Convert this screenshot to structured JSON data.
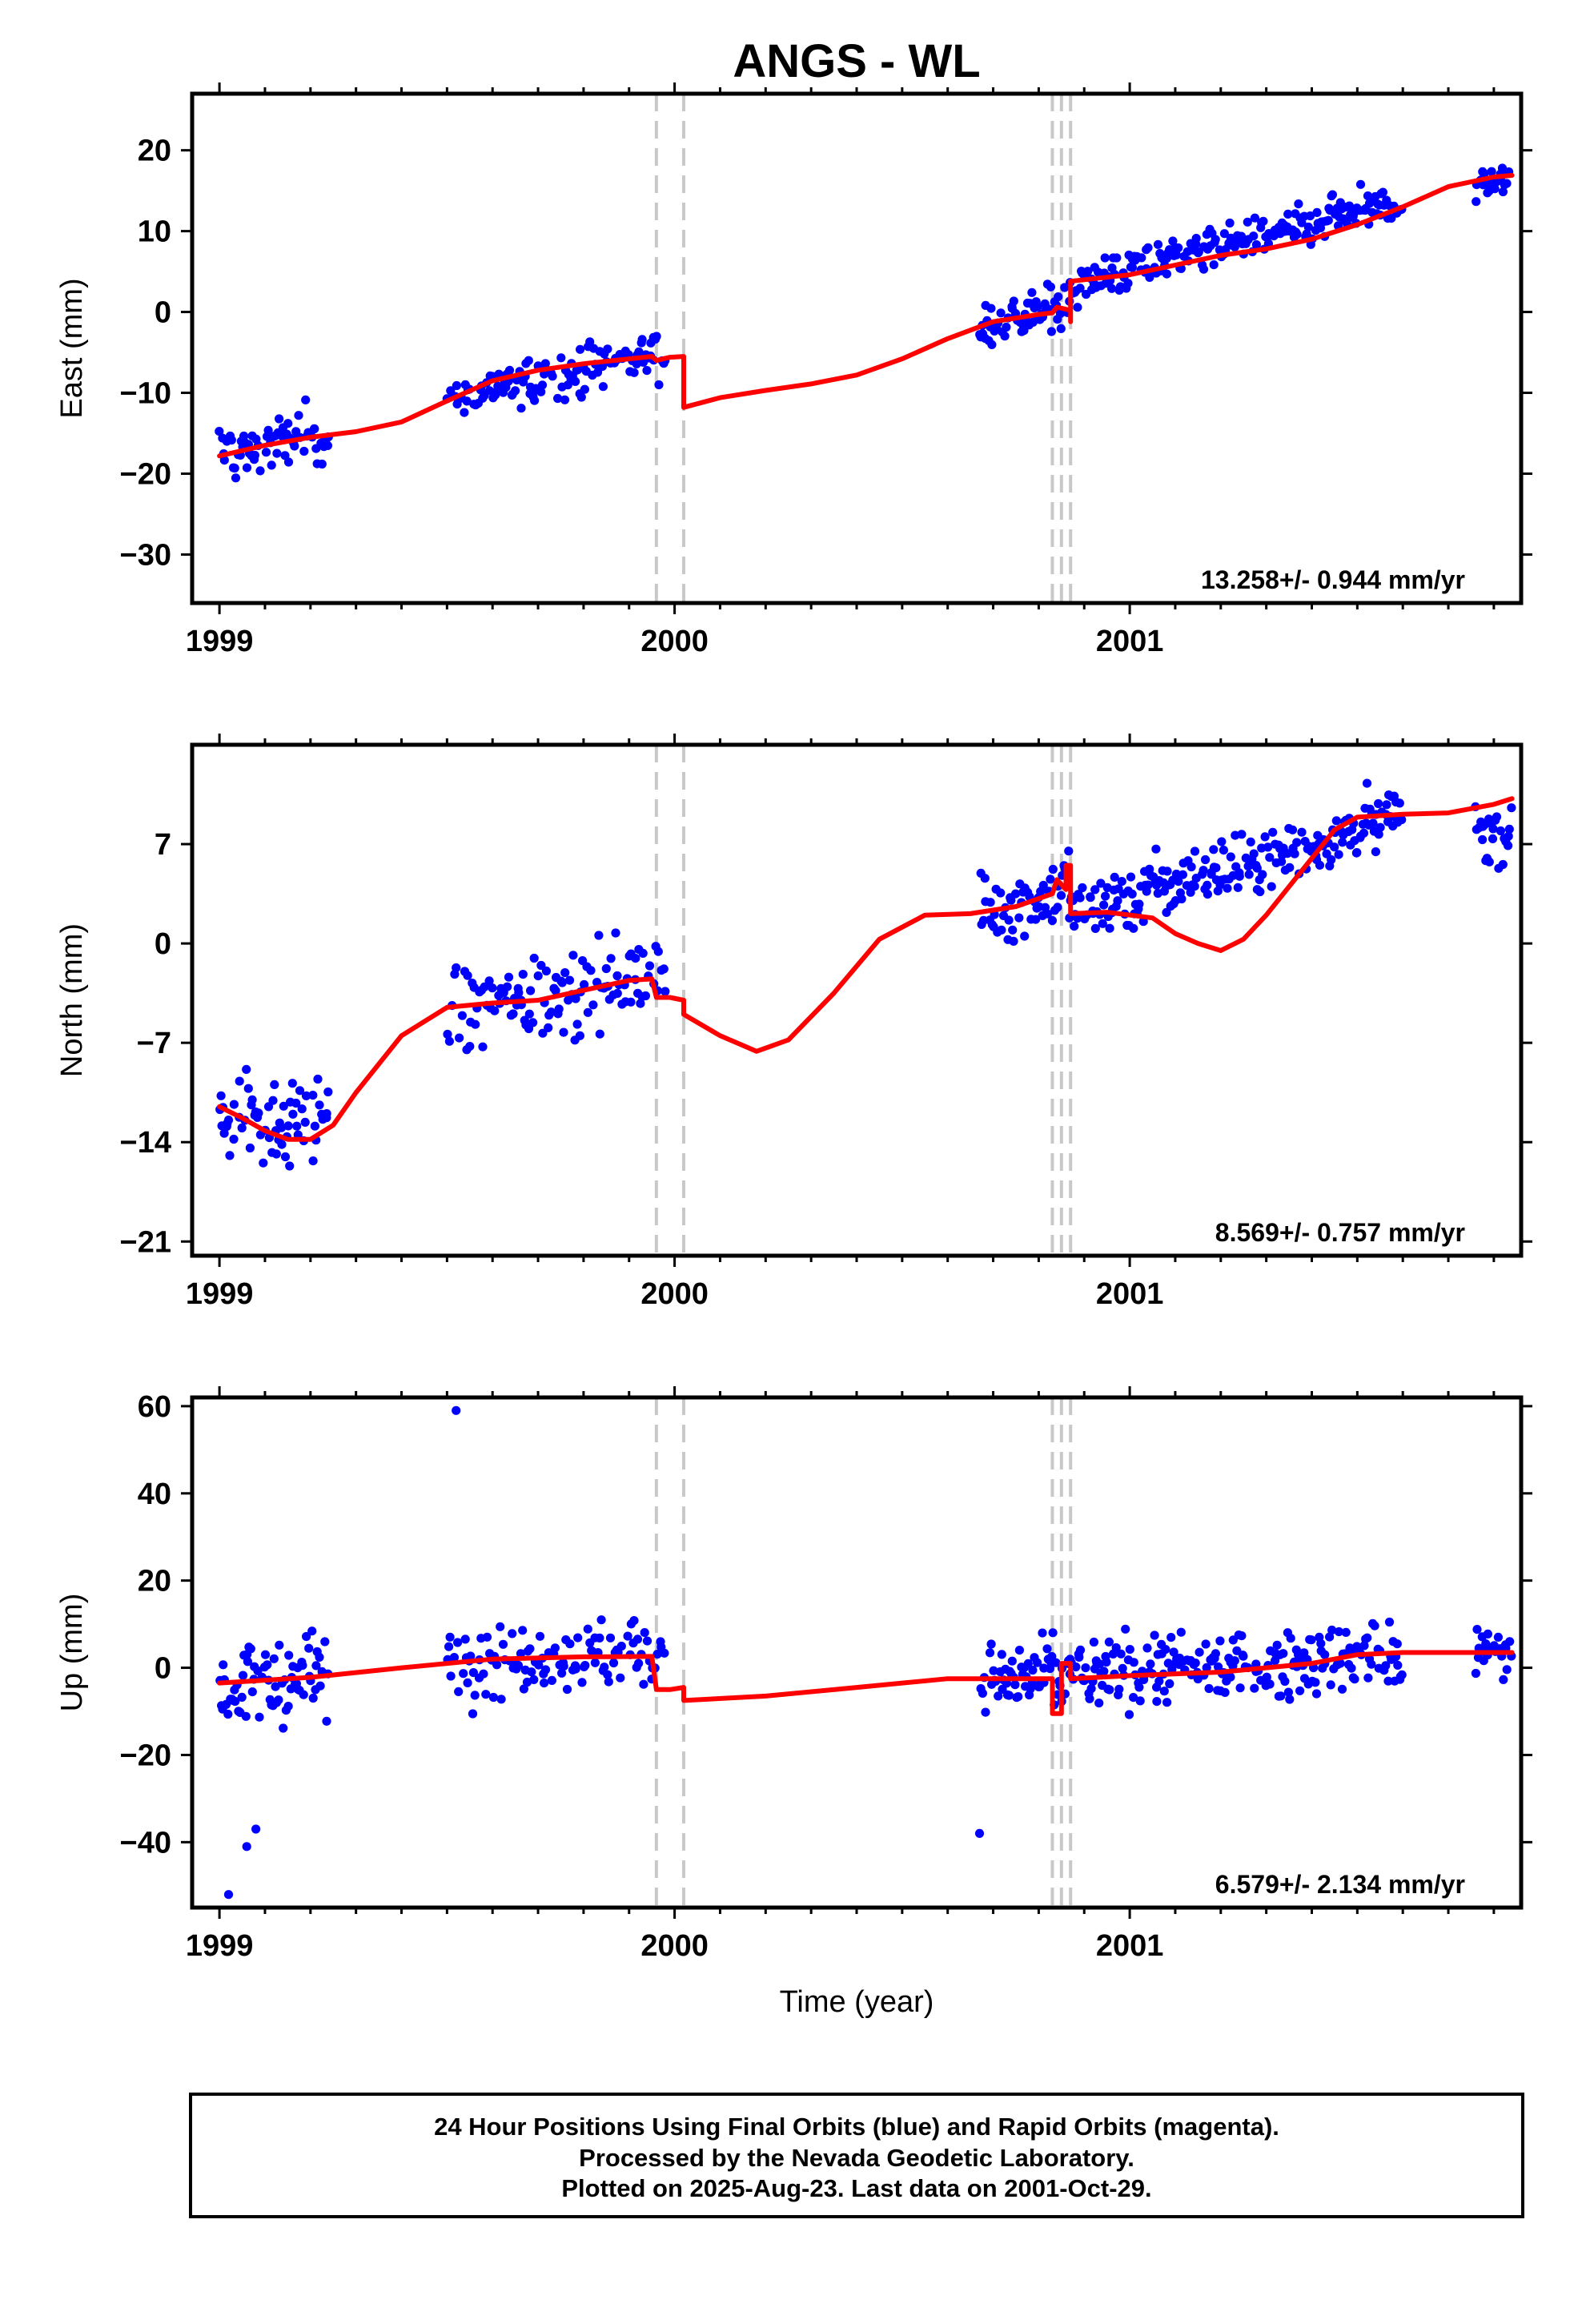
{
  "chart_data": {
    "type": "scatter",
    "title": "ANGS - WL",
    "xlabel": "Time (year)",
    "x_ticks": [
      "1999",
      "2000",
      "2001"
    ],
    "xlim": [
      1998.94,
      2001.86
    ],
    "marker_color": "#0000ff",
    "fit_color": "#ff0000",
    "event_line_color": "#c8c8c8",
    "event_lines": [
      1999.96,
      2000.02,
      2000.83,
      2000.85,
      2000.87
    ],
    "panels": [
      {
        "name": "east",
        "ylabel": "East (mm)",
        "ylim": [
          -36,
          27
        ],
        "yticks": [
          "20",
          "10",
          "0",
          "−10",
          "−20",
          "−30"
        ],
        "ytick_values": [
          20,
          10,
          0,
          -10,
          -20,
          -30
        ],
        "rate": "13.258+/- 0.944 mm/yr",
        "fit": [
          [
            1999.0,
            -17.8
          ],
          [
            1999.1,
            -16.5
          ],
          [
            1999.2,
            -15.5
          ],
          [
            1999.3,
            -14.8
          ],
          [
            1999.4,
            -13.6
          ],
          [
            1999.5,
            -11.0
          ],
          [
            1999.6,
            -8.5
          ],
          [
            1999.7,
            -7.2
          ],
          [
            1999.8,
            -6.4
          ],
          [
            1999.9,
            -5.8
          ],
          [
            1999.95,
            -5.5
          ],
          [
            1999.96,
            -6.0
          ],
          [
            1999.99,
            -5.6
          ],
          [
            2000.02,
            -5.5
          ],
          [
            2000.02,
            -11.8
          ],
          [
            2000.1,
            -10.6
          ],
          [
            2000.2,
            -9.7
          ],
          [
            2000.3,
            -8.9
          ],
          [
            2000.4,
            -7.8
          ],
          [
            2000.5,
            -5.8
          ],
          [
            2000.6,
            -3.3
          ],
          [
            2000.7,
            -1.2
          ],
          [
            2000.8,
            -0.3
          ],
          [
            2000.83,
            -0.1
          ],
          [
            2000.84,
            0.6
          ],
          [
            2000.87,
            0.2
          ],
          [
            2000.87,
            -1.2
          ],
          [
            2000.87,
            3.8
          ],
          [
            2001.0,
            4.6
          ],
          [
            2001.1,
            5.8
          ],
          [
            2001.2,
            7.0
          ],
          [
            2001.3,
            7.8
          ],
          [
            2001.4,
            9.0
          ],
          [
            2001.5,
            10.8
          ],
          [
            2001.6,
            13.0
          ],
          [
            2001.7,
            15.5
          ],
          [
            2001.8,
            16.7
          ],
          [
            2001.84,
            16.9
          ]
        ],
        "clusters": [
          {
            "t0": 1999.0,
            "t1": 1999.24,
            "step": 0.003,
            "v0": -18,
            "v1": -14.5,
            "amp": 5.5
          },
          {
            "t0": 1999.5,
            "t1": 1999.98,
            "step": 0.0033,
            "v0": -11,
            "v1": -4.5,
            "amp": 4.2
          },
          {
            "t0": 2000.67,
            "t1": 2000.87,
            "step": 0.0028,
            "v0": -2,
            "v1": 1,
            "amp": 3.8
          },
          {
            "t0": 2000.87,
            "t1": 2001.6,
            "step": 0.0028,
            "v0": 3.5,
            "v1": 13.5,
            "amp": 3.5
          },
          {
            "t0": 2001.76,
            "t1": 2001.84,
            "step": 0.0028,
            "v0": 15.5,
            "v1": 16.5,
            "amp": 3.2
          }
        ]
      },
      {
        "name": "north",
        "ylabel": "North (mm)",
        "ylim": [
          -22,
          14
        ],
        "yticks": [
          "7",
          "0",
          "−7",
          "−14",
          "−21"
        ],
        "ytick_values": [
          7,
          0,
          -7,
          -14,
          -21
        ],
        "rate": "8.569+/- 0.757 mm/yr",
        "fit": [
          [
            1999.0,
            -11.5
          ],
          [
            1999.05,
            -12.3
          ],
          [
            1999.1,
            -13.2
          ],
          [
            1999.15,
            -13.8
          ],
          [
            1999.2,
            -13.8
          ],
          [
            1999.25,
            -12.8
          ],
          [
            1999.3,
            -10.5
          ],
          [
            1999.4,
            -6.5
          ],
          [
            1999.5,
            -4.5
          ],
          [
            1999.6,
            -4.2
          ],
          [
            1999.7,
            -4.0
          ],
          [
            1999.8,
            -3.3
          ],
          [
            1999.9,
            -2.6
          ],
          [
            1999.95,
            -2.5
          ],
          [
            1999.96,
            -3.8
          ],
          [
            1999.99,
            -3.8
          ],
          [
            2000.02,
            -4.0
          ],
          [
            2000.02,
            -5.0
          ],
          [
            2000.1,
            -6.5
          ],
          [
            2000.18,
            -7.6
          ],
          [
            2000.25,
            -6.8
          ],
          [
            2000.35,
            -3.5
          ],
          [
            2000.45,
            0.3
          ],
          [
            2000.55,
            2.0
          ],
          [
            2000.65,
            2.1
          ],
          [
            2000.75,
            2.6
          ],
          [
            2000.83,
            3.5
          ],
          [
            2000.84,
            4.5
          ],
          [
            2000.86,
            3.8
          ],
          [
            2000.86,
            5.5
          ],
          [
            2000.87,
            5.5
          ],
          [
            2000.87,
            2.1
          ],
          [
            2000.95,
            2.2
          ],
          [
            2001.05,
            1.8
          ],
          [
            2001.1,
            0.7
          ],
          [
            2001.15,
            0.0
          ],
          [
            2001.2,
            -0.5
          ],
          [
            2001.25,
            0.3
          ],
          [
            2001.3,
            2.0
          ],
          [
            2001.4,
            6.0
          ],
          [
            2001.45,
            8.0
          ],
          [
            2001.5,
            8.9
          ],
          [
            2001.6,
            9.1
          ],
          [
            2001.7,
            9.2
          ],
          [
            2001.8,
            9.8
          ],
          [
            2001.84,
            10.2
          ]
        ],
        "clusters": [
          {
            "t0": 1999.0,
            "t1": 1999.24,
            "step": 0.003,
            "v0": -12,
            "v1": -13,
            "amp": 5.0
          },
          {
            "t0": 1999.5,
            "t1": 1999.98,
            "step": 0.0033,
            "v0": -5,
            "v1": -2,
            "amp": 4.0
          },
          {
            "t0": 2000.67,
            "t1": 2000.87,
            "step": 0.0028,
            "v0": 2,
            "v1": 4,
            "amp": 3.2
          },
          {
            "t0": 2000.87,
            "t1": 2001.6,
            "step": 0.0028,
            "v0": 2,
            "v1": 9,
            "amp": 3.2
          },
          {
            "t0": 2001.76,
            "t1": 2001.84,
            "step": 0.0028,
            "v0": 8,
            "v1": 8,
            "amp": 3.0
          }
        ]
      },
      {
        "name": "up",
        "ylabel": "Up (mm)",
        "ylim": [
          -55,
          62
        ],
        "yticks": [
          "60",
          "40",
          "20",
          "0",
          "−20",
          "−40"
        ],
        "ytick_values": [
          60,
          40,
          20,
          0,
          -20,
          -40
        ],
        "rate": "6.579+/- 2.134 mm/yr",
        "fit": [
          [
            1999.0,
            -3.5
          ],
          [
            1999.2,
            -2.2
          ],
          [
            1999.4,
            0.0
          ],
          [
            1999.6,
            2.0
          ],
          [
            1999.8,
            2.5
          ],
          [
            1999.95,
            2.6
          ],
          [
            1999.96,
            -5.0
          ],
          [
            1999.99,
            -5.0
          ],
          [
            2000.02,
            -4.5
          ],
          [
            2000.02,
            -7.5
          ],
          [
            2000.2,
            -6.5
          ],
          [
            2000.4,
            -4.5
          ],
          [
            2000.6,
            -2.5
          ],
          [
            2000.8,
            -2.5
          ],
          [
            2000.83,
            -2.5
          ],
          [
            2000.83,
            -10.5
          ],
          [
            2000.85,
            -10.5
          ],
          [
            2000.85,
            1.0
          ],
          [
            2000.87,
            1.0
          ],
          [
            2000.87,
            -2.5
          ],
          [
            2001.0,
            -1.8
          ],
          [
            2001.2,
            -1.0
          ],
          [
            2001.4,
            1.0
          ],
          [
            2001.5,
            3.0
          ],
          [
            2001.6,
            3.5
          ],
          [
            2001.84,
            3.5
          ]
        ],
        "clusters": [
          {
            "t0": 1999.0,
            "t1": 1999.24,
            "step": 0.003,
            "v0": -4,
            "v1": -2,
            "amp": 14
          },
          {
            "t0": 1999.5,
            "t1": 1999.98,
            "step": 0.0033,
            "v0": 2,
            "v1": 3,
            "amp": 12
          },
          {
            "t0": 2000.67,
            "t1": 2000.87,
            "step": 0.0028,
            "v0": -3,
            "v1": -2,
            "amp": 12
          },
          {
            "t0": 2000.87,
            "t1": 2001.6,
            "step": 0.0028,
            "v0": -2,
            "v1": 3,
            "amp": 11
          },
          {
            "t0": 2001.76,
            "t1": 2001.84,
            "step": 0.0028,
            "v0": 3,
            "v1": 3,
            "amp": 10
          }
        ],
        "extra_points": [
          [
            1999.52,
            59
          ],
          [
            1999.02,
            -52
          ],
          [
            2000.67,
            -38
          ],
          [
            1999.06,
            -41
          ],
          [
            1999.08,
            -37
          ]
        ]
      }
    ]
  },
  "caption": {
    "line1": "24 Hour Positions Using Final Orbits (blue) and Rapid Orbits (magenta).",
    "line2": "Processed by the Nevada Geodetic Laboratory.",
    "line3": "Plotted on 2025-Aug-23. Last data on 2001-Oct-29."
  }
}
